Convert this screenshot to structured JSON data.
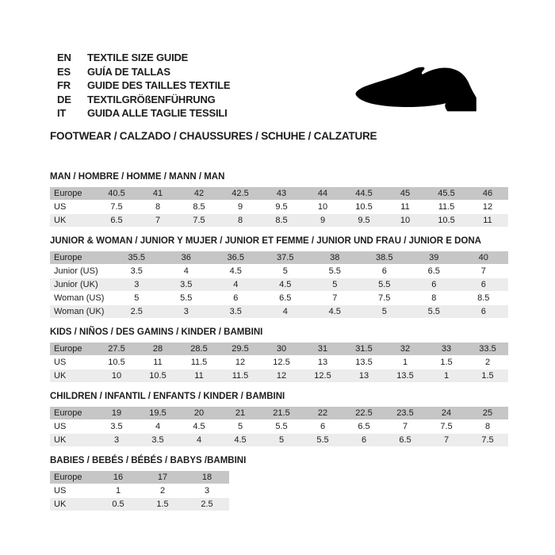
{
  "header": {
    "languages": [
      {
        "code": "EN",
        "text": "TEXTILE SIZE GUIDE"
      },
      {
        "code": "ES",
        "text": "GUÍA DE TALLAS"
      },
      {
        "code": "FR",
        "text": "GUIDE DES TAILLES TEXTILE"
      },
      {
        "code": "DE",
        "text": "TEXTILGRÖßENFÜHRUNG"
      },
      {
        "code": "IT",
        "text": "GUIDA ALLE TAGLIE TESSILI"
      }
    ],
    "category_line": "FOOTWEAR / CALZADO / CHAUSSURES / SCHUHE / CALZATURE",
    "shoe_icon": "dress-shoe-silhouette"
  },
  "colors": {
    "header_row_bg": "#c6c6c6",
    "alt_row_bg": "#ececec",
    "text": "#1d1d1b",
    "shoe": "#000000"
  },
  "tables": [
    {
      "title": "MAN / HOMBRE / HOMME / MANN / MAN",
      "rows": [
        {
          "label": "Europe",
          "values": [
            "40.5",
            "41",
            "42",
            "42.5",
            "43",
            "44",
            "44.5",
            "45",
            "45.5",
            "46"
          ]
        },
        {
          "label": "US",
          "values": [
            "7.5",
            "8",
            "8.5",
            "9",
            "9.5",
            "10",
            "10.5",
            "11",
            "11.5",
            "12"
          ]
        },
        {
          "label": "UK",
          "values": [
            "6.5",
            "7",
            "7.5",
            "8",
            "8.5",
            "9",
            "9.5",
            "10",
            "10.5",
            "11"
          ]
        }
      ]
    },
    {
      "title": "JUNIOR & WOMAN / JUNIOR Y MUJER / JUNIOR ET FEMME / JUNIOR UND FRAU / JUNIOR E DONA",
      "rows": [
        {
          "label": "Europe",
          "values": [
            "35.5",
            "36",
            "36.5",
            "37.5",
            "38",
            "38.5",
            "39",
            "40"
          ]
        },
        {
          "label": "Junior (US)",
          "values": [
            "3.5",
            "4",
            "4.5",
            "5",
            "5.5",
            "6",
            "6.5",
            "7"
          ]
        },
        {
          "label": "Junior (UK)",
          "values": [
            "3",
            "3.5",
            "4",
            "4.5",
            "5",
            "5.5",
            "6",
            "6"
          ]
        },
        {
          "label": "Woman (US)",
          "values": [
            "5",
            "5.5",
            "6",
            "6.5",
            "7",
            "7.5",
            "8",
            "8.5"
          ]
        },
        {
          "label": "Woman (UK)",
          "values": [
            "2.5",
            "3",
            "3.5",
            "4",
            "4.5",
            "5",
            "5.5",
            "6"
          ]
        }
      ]
    },
    {
      "title": "KIDS / NIÑOS / DES GAMINS / KINDER / BAMBINI",
      "rows": [
        {
          "label": "Europe",
          "values": [
            "27.5",
            "28",
            "28.5",
            "29.5",
            "30",
            "31",
            "31.5",
            "32",
            "33",
            "33.5"
          ]
        },
        {
          "label": "US",
          "values": [
            "10.5",
            "11",
            "11.5",
            "12",
            "12.5",
            "13",
            "13.5",
            "1",
            "1.5",
            "2"
          ]
        },
        {
          "label": "UK",
          "values": [
            "10",
            "10.5",
            "11",
            "11.5",
            "12",
            "12.5",
            "13",
            "13.5",
            "1",
            "1.5"
          ]
        }
      ]
    },
    {
      "title": "CHILDREN / INFANTIL / ENFANTS / KINDER / BAMBINI",
      "rows": [
        {
          "label": "Europe",
          "values": [
            "19",
            "19.5",
            "20",
            "21",
            "21.5",
            "22",
            "22.5",
            "23.5",
            "24",
            "25"
          ]
        },
        {
          "label": "US",
          "values": [
            "3.5",
            "4",
            "4.5",
            "5",
            "5.5",
            "6",
            "6.5",
            "7",
            "7.5",
            "8"
          ]
        },
        {
          "label": "UK",
          "values": [
            "3",
            "3.5",
            "4",
            "4.5",
            "5",
            "5.5",
            "6",
            "6.5",
            "7",
            "7.5"
          ]
        }
      ]
    },
    {
      "title": "BABIES / BEBÉS / BÉBÉS / BABYS /BAMBINI",
      "rows": [
        {
          "label": "Europe",
          "values": [
            "16",
            "17",
            "18"
          ]
        },
        {
          "label": "US",
          "values": [
            "1",
            "2",
            "3"
          ]
        },
        {
          "label": "UK",
          "values": [
            "0.5",
            "1.5",
            "2.5"
          ]
        }
      ]
    }
  ]
}
